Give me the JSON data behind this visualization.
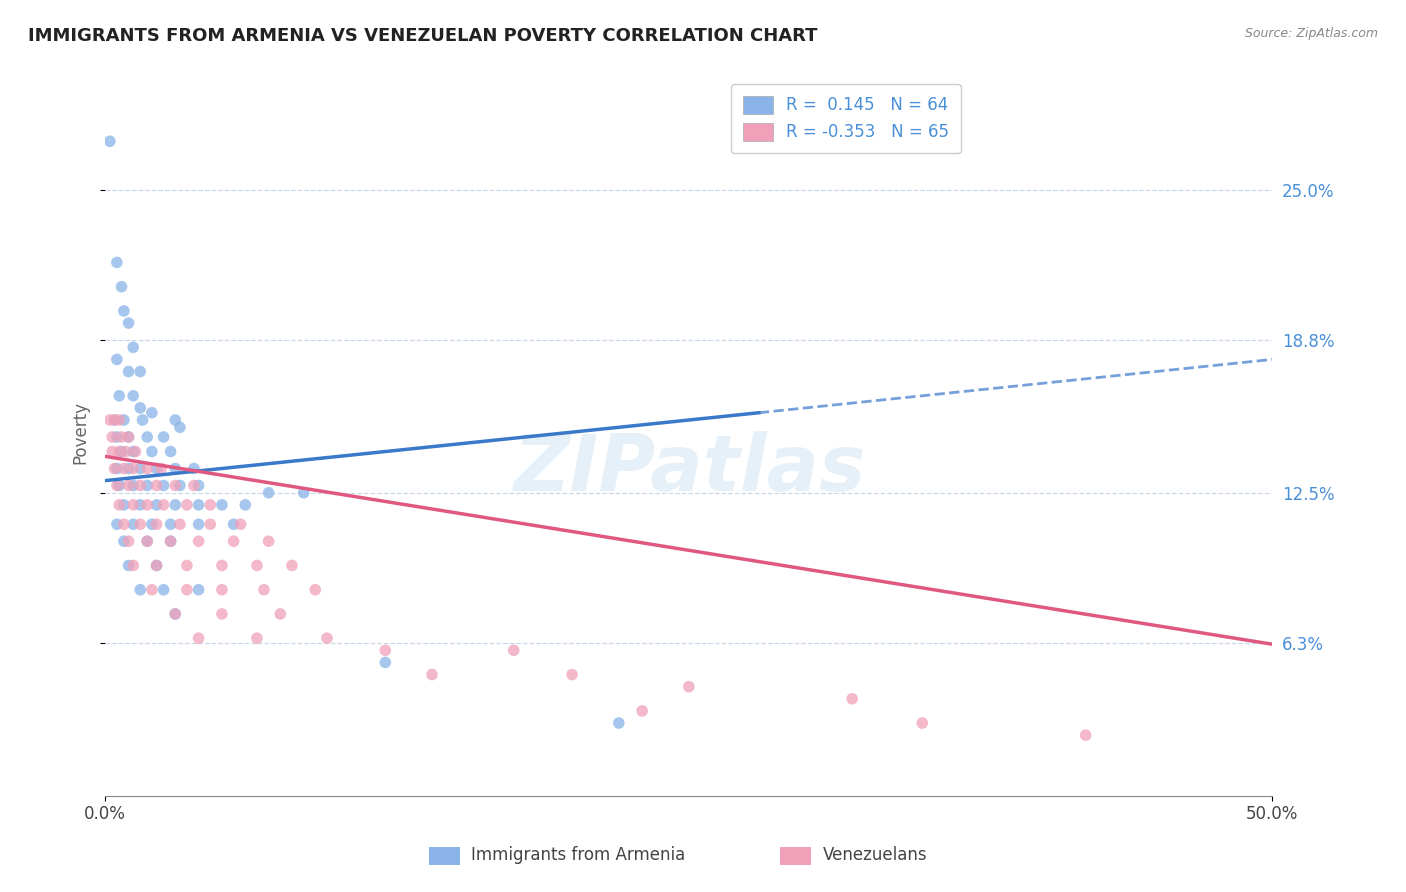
{
  "title": "IMMIGRANTS FROM ARMENIA VS VENEZUELAN POVERTY CORRELATION CHART",
  "source": "Source: ZipAtlas.com",
  "ylabel": "Poverty",
  "xlim": [
    0.0,
    0.5
  ],
  "ylim": [
    0.0,
    0.3
  ],
  "ytick_values": [
    0.063,
    0.125,
    0.188,
    0.25
  ],
  "ytick_labels": [
    "6.3%",
    "12.5%",
    "18.8%",
    "25.0%"
  ],
  "watermark": "ZIPatlas",
  "series1_color": "#8ab4e8",
  "series2_color": "#f0a0b8",
  "series1_line_color": "#3a78c9",
  "series2_line_color": "#e05880",
  "series1_line_solid_end": 0.28,
  "line1_intercept": 0.13,
  "line1_slope": 0.1,
  "line2_intercept": 0.14,
  "line2_slope": -0.155,
  "grid_color": "#c8d8e8",
  "background_color": "#ffffff",
  "title_color": "#222222",
  "title_fontsize": 13,
  "right_label_color": "#4a90d9",
  "scatter1": [
    [
      0.002,
      0.27
    ],
    [
      0.005,
      0.22
    ],
    [
      0.007,
      0.21
    ],
    [
      0.008,
      0.2
    ],
    [
      0.01,
      0.195
    ],
    [
      0.012,
      0.185
    ],
    [
      0.005,
      0.18
    ],
    [
      0.01,
      0.175
    ],
    [
      0.015,
      0.175
    ],
    [
      0.006,
      0.165
    ],
    [
      0.012,
      0.165
    ],
    [
      0.015,
      0.16
    ],
    [
      0.02,
      0.158
    ],
    [
      0.004,
      0.155
    ],
    [
      0.008,
      0.155
    ],
    [
      0.016,
      0.155
    ],
    [
      0.03,
      0.155
    ],
    [
      0.032,
      0.152
    ],
    [
      0.005,
      0.148
    ],
    [
      0.01,
      0.148
    ],
    [
      0.018,
      0.148
    ],
    [
      0.025,
      0.148
    ],
    [
      0.007,
      0.142
    ],
    [
      0.012,
      0.142
    ],
    [
      0.02,
      0.142
    ],
    [
      0.028,
      0.142
    ],
    [
      0.005,
      0.135
    ],
    [
      0.01,
      0.135
    ],
    [
      0.015,
      0.135
    ],
    [
      0.022,
      0.135
    ],
    [
      0.03,
      0.135
    ],
    [
      0.038,
      0.135
    ],
    [
      0.006,
      0.128
    ],
    [
      0.012,
      0.128
    ],
    [
      0.018,
      0.128
    ],
    [
      0.025,
      0.128
    ],
    [
      0.032,
      0.128
    ],
    [
      0.04,
      0.128
    ],
    [
      0.008,
      0.12
    ],
    [
      0.015,
      0.12
    ],
    [
      0.022,
      0.12
    ],
    [
      0.03,
      0.12
    ],
    [
      0.04,
      0.12
    ],
    [
      0.05,
      0.12
    ],
    [
      0.06,
      0.12
    ],
    [
      0.005,
      0.112
    ],
    [
      0.012,
      0.112
    ],
    [
      0.02,
      0.112
    ],
    [
      0.028,
      0.112
    ],
    [
      0.04,
      0.112
    ],
    [
      0.055,
      0.112
    ],
    [
      0.008,
      0.105
    ],
    [
      0.018,
      0.105
    ],
    [
      0.028,
      0.105
    ],
    [
      0.01,
      0.095
    ],
    [
      0.022,
      0.095
    ],
    [
      0.015,
      0.085
    ],
    [
      0.025,
      0.085
    ],
    [
      0.04,
      0.085
    ],
    [
      0.03,
      0.075
    ],
    [
      0.07,
      0.125
    ],
    [
      0.085,
      0.125
    ],
    [
      0.12,
      0.055
    ],
    [
      0.22,
      0.03
    ]
  ],
  "scatter2": [
    [
      0.002,
      0.155
    ],
    [
      0.004,
      0.155
    ],
    [
      0.006,
      0.155
    ],
    [
      0.003,
      0.148
    ],
    [
      0.007,
      0.148
    ],
    [
      0.01,
      0.148
    ],
    [
      0.003,
      0.142
    ],
    [
      0.006,
      0.142
    ],
    [
      0.009,
      0.142
    ],
    [
      0.013,
      0.142
    ],
    [
      0.004,
      0.135
    ],
    [
      0.008,
      0.135
    ],
    [
      0.012,
      0.135
    ],
    [
      0.018,
      0.135
    ],
    [
      0.024,
      0.135
    ],
    [
      0.005,
      0.128
    ],
    [
      0.01,
      0.128
    ],
    [
      0.015,
      0.128
    ],
    [
      0.022,
      0.128
    ],
    [
      0.03,
      0.128
    ],
    [
      0.038,
      0.128
    ],
    [
      0.006,
      0.12
    ],
    [
      0.012,
      0.12
    ],
    [
      0.018,
      0.12
    ],
    [
      0.025,
      0.12
    ],
    [
      0.035,
      0.12
    ],
    [
      0.045,
      0.12
    ],
    [
      0.008,
      0.112
    ],
    [
      0.015,
      0.112
    ],
    [
      0.022,
      0.112
    ],
    [
      0.032,
      0.112
    ],
    [
      0.045,
      0.112
    ],
    [
      0.058,
      0.112
    ],
    [
      0.01,
      0.105
    ],
    [
      0.018,
      0.105
    ],
    [
      0.028,
      0.105
    ],
    [
      0.04,
      0.105
    ],
    [
      0.055,
      0.105
    ],
    [
      0.07,
      0.105
    ],
    [
      0.012,
      0.095
    ],
    [
      0.022,
      0.095
    ],
    [
      0.035,
      0.095
    ],
    [
      0.05,
      0.095
    ],
    [
      0.065,
      0.095
    ],
    [
      0.08,
      0.095
    ],
    [
      0.02,
      0.085
    ],
    [
      0.035,
      0.085
    ],
    [
      0.05,
      0.085
    ],
    [
      0.068,
      0.085
    ],
    [
      0.09,
      0.085
    ],
    [
      0.03,
      0.075
    ],
    [
      0.05,
      0.075
    ],
    [
      0.075,
      0.075
    ],
    [
      0.04,
      0.065
    ],
    [
      0.065,
      0.065
    ],
    [
      0.095,
      0.065
    ],
    [
      0.12,
      0.06
    ],
    [
      0.175,
      0.06
    ],
    [
      0.14,
      0.05
    ],
    [
      0.2,
      0.05
    ],
    [
      0.25,
      0.045
    ],
    [
      0.32,
      0.04
    ],
    [
      0.23,
      0.035
    ],
    [
      0.35,
      0.03
    ],
    [
      0.42,
      0.025
    ]
  ]
}
